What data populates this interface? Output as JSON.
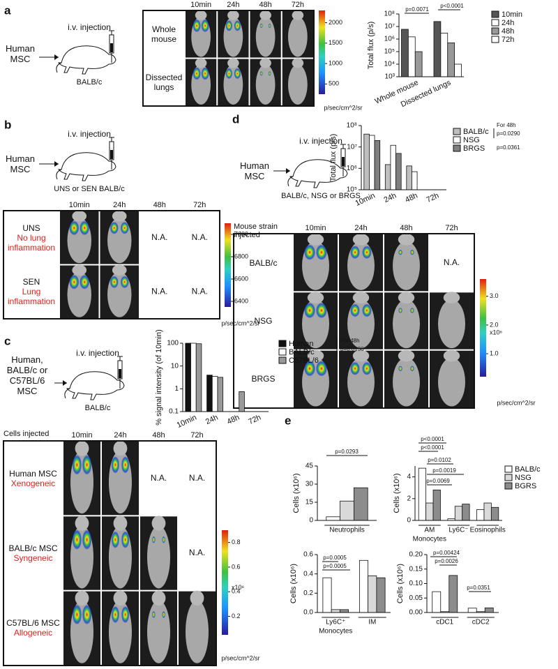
{
  "panel_labels": [
    "a",
    "b",
    "c",
    "d",
    "e"
  ],
  "a": {
    "source": "Human MSC",
    "route": "i.v. injection",
    "host": "BALB/c",
    "columns": [
      "10min",
      "24h",
      "48h",
      "72h"
    ],
    "rows": [
      {
        "label": "Whole mouse",
        "cells": [
          null,
          null,
          null,
          null
        ]
      },
      {
        "label": "Dissected lungs",
        "cells": [
          null,
          null,
          null,
          null
        ]
      }
    ],
    "colorbar": {
      "range": [
        250,
        2300
      ],
      "ticks": [
        500,
        1000,
        1500,
        2000
      ],
      "unit": "p/sec/cm^2/sr"
    }
  },
  "b": {
    "source": "Human MSC",
    "route": "i.v. injection",
    "host": "UNS or SEN BALB/c",
    "columns": [
      "10min",
      "24h",
      "48h",
      "72h"
    ],
    "rows": [
      {
        "label": "UNS",
        "note": "No lung inflammation",
        "cells": [
          null,
          null,
          "N.A.",
          "N.A."
        ]
      },
      {
        "label": "SEN",
        "note": "Lung inflammation",
        "cells": [
          null,
          null,
          "N.A.",
          "N.A."
        ]
      }
    ],
    "colorbar": {
      "range": [
        6350,
        7100
      ],
      "ticks": [
        6400,
        6600,
        6800,
        7000
      ],
      "unit": "p/sec/cm^2/sr"
    }
  },
  "c": {
    "source": "Human, BALB/c or C57BL/6 MSC",
    "route": "i.v. injection",
    "host": "BALB/c",
    "corner": "Cells injected",
    "columns": [
      "10min",
      "24h",
      "48h",
      "72h"
    ],
    "rows": [
      {
        "label": "Human MSC",
        "note": "Xenogeneic",
        "cells": [
          null,
          null,
          "N.A.",
          "N.A."
        ]
      },
      {
        "label": "BALB/c MSC",
        "note": "Syngeneic",
        "cells": [
          null,
          null,
          null,
          "N.A."
        ]
      },
      {
        "label": "C57BL/6 MSC",
        "note": "Allogeneic",
        "cells": [
          null,
          null,
          null,
          null
        ]
      }
    ],
    "colorbar": {
      "range": [
        0.05,
        0.9
      ],
      "ticks": [
        0.2,
        0.4,
        0.6,
        0.8
      ],
      "multiplier": "x10⁶",
      "unit": "p/sec/cm^2/sr"
    }
  },
  "d": {
    "source": "Human MSC",
    "route": "i.v. injection",
    "host": "BALB/c, NSG or BRGS",
    "corner": "Mouse strain injected",
    "columns": [
      "10min",
      "24h",
      "48h",
      "72h"
    ],
    "rows": [
      {
        "label": "BALB/c",
        "cells": [
          null,
          null,
          null,
          "N.A."
        ]
      },
      {
        "label": "NSG",
        "cells": [
          null,
          null,
          null,
          null
        ]
      },
      {
        "label": "BRGS",
        "cells": [
          null,
          null,
          null,
          null
        ]
      }
    ],
    "colorbar": {
      "range": [
        0.2,
        3.6
      ],
      "ticks": [
        {
          "value": 1,
          "label": "1.0"
        },
        {
          "value": 2,
          "label": "2.0"
        },
        {
          "value": 3,
          "label": "3.0"
        }
      ],
      "multiplier": "x10⁶",
      "unit": "p/sec/cm^2/sr"
    }
  },
  "chart_data": [
    {
      "type": "bar",
      "ylabel": "Total flux (p/s)",
      "log": true,
      "categories": [
        "Whole mouse",
        "Dissected lungs"
      ],
      "series": [
        {
          "name": "10min",
          "color": "#555555",
          "values": [
            6000000,
            25000000
          ]
        },
        {
          "name": "24h",
          "color": "#ffffff",
          "values": [
            1500000,
            3000000
          ]
        },
        {
          "name": "48h",
          "color": "#999999",
          "values": [
            100000,
            500000
          ]
        },
        {
          "name": "72h",
          "color": "#ffffff",
          "values": [
            null,
            10000
          ]
        }
      ],
      "ylim": [
        1000,
        100000000
      ],
      "yticks": [
        {
          "value": 1000,
          "label": "10³"
        },
        {
          "value": 10000,
          "label": "10⁴"
        },
        {
          "value": 100000,
          "label": "10⁵"
        },
        {
          "value": 1000000,
          "label": "10⁶"
        },
        {
          "value": 10000000,
          "label": "10⁷"
        },
        {
          "value": 100000000,
          "label": "10⁸"
        }
      ],
      "annotations": [
        "p=0.0071",
        "p<0.0001"
      ]
    },
    {
      "type": "bar",
      "ylabel": "% signal intensity (of 10min)",
      "log": true,
      "categories": [
        "10min",
        "24h",
        "48h",
        "72h"
      ],
      "series": [
        {
          "name": "Human",
          "color": "#111111",
          "values": [
            100,
            4,
            null,
            null
          ]
        },
        {
          "name": "BALB/c",
          "color": "#ffffff",
          "values": [
            100,
            3.5,
            null,
            null
          ]
        },
        {
          "name": "C57BL/6",
          "color": "#999999",
          "values": [
            95,
            3.2,
            0.75,
            null
          ]
        }
      ],
      "ylim": [
        0.1,
        100
      ],
      "yticks": [
        0.1,
        1,
        10,
        100
      ],
      "annotations": [
        "For 48h",
        "p=0.0136"
      ]
    },
    {
      "type": "bar",
      "ylabel": "Total flux (p/s)",
      "log": true,
      "categories": [
        "10min",
        "24h",
        "48h",
        "72h"
      ],
      "series": [
        {
          "name": "BALB/c",
          "color": "#bfbfbf",
          "values": [
            40000000,
            1500000,
            1300000,
            null
          ]
        },
        {
          "name": "NSG",
          "color": "#ffffff",
          "values": [
            35000000,
            12000000,
            700000,
            null
          ]
        },
        {
          "name": "BRGS",
          "color": "#7f7f7f",
          "values": [
            20000000,
            5000000,
            null,
            null
          ]
        }
      ],
      "ylim": [
        100000,
        100000000
      ],
      "yticks": [
        {
          "value": 100000,
          "label": "10⁵"
        },
        {
          "value": 1000000,
          "label": "10⁶"
        },
        {
          "value": 10000000,
          "label": "10⁷"
        },
        {
          "value": 100000000,
          "label": "10⁸"
        }
      ],
      "annotations": [
        "For 48h",
        "p=0.0290",
        "p=0.0361"
      ]
    },
    {
      "type": "bar",
      "ylabel": "Cells (x10⁶)",
      "categories": [
        "Neutrophils"
      ],
      "series": [
        {
          "name": "BALB/c",
          "color": "#ffffff",
          "values": [
            3
          ]
        },
        {
          "name": "NSG",
          "color": "#d9d9d9",
          "values": [
            16
          ]
        },
        {
          "name": "BGRS",
          "color": "#8c8c8c",
          "values": [
            27
          ]
        }
      ],
      "ylim": [
        0,
        45
      ],
      "yticks": [
        0,
        15,
        30,
        45
      ],
      "annotations": [
        "p=0.0293"
      ]
    },
    {
      "type": "bar",
      "ylabel": "Cells (x10⁶)",
      "categories": [
        "AM",
        "Ly6C⁻",
        "Eosinophils"
      ],
      "x_note": "Monocytes",
      "series": [
        {
          "name": "BALB/c",
          "color": "#ffffff",
          "values": [
            4.8,
            0.15,
            1.0
          ]
        },
        {
          "name": "NSG",
          "color": "#d9d9d9",
          "values": [
            1.6,
            1.3,
            1.6
          ]
        },
        {
          "name": "BGRS",
          "color": "#8c8c8c",
          "values": [
            2.8,
            1.5,
            1.2
          ]
        }
      ],
      "ylim": [
        0,
        5
      ],
      "yticks": [
        0,
        2,
        4
      ],
      "annotations": [
        "p<0.0001",
        "p<0.0001",
        "p=0.0102",
        "p=0.0019",
        "p=0.0069"
      ]
    },
    {
      "type": "bar",
      "ylabel": "Cells (x10⁶)",
      "categories": [
        "Ly6C⁺",
        "IM"
      ],
      "x_note": "Monocytes",
      "series": [
        {
          "name": "BALB/c",
          "color": "#ffffff",
          "values": [
            0.36,
            0.54
          ]
        },
        {
          "name": "NSG",
          "color": "#d9d9d9",
          "values": [
            0.03,
            0.38
          ]
        },
        {
          "name": "BGRS",
          "color": "#8c8c8c",
          "values": [
            0.03,
            0.36
          ]
        }
      ],
      "ylim": [
        0,
        0.6
      ],
      "yticks": [
        {
          "value": 0,
          "label": "0.0"
        },
        0.2,
        0.4,
        0.6
      ],
      "annotations": [
        "p=0.0005",
        "p=0.0005"
      ]
    },
    {
      "type": "bar",
      "ylabel": "Cells (x10⁶)",
      "categories": [
        "cDC1",
        "cDC2"
      ],
      "series": [
        {
          "name": "BALB/c",
          "color": "#ffffff",
          "values": [
            0.072,
            0.015
          ]
        },
        {
          "name": "NSG",
          "color": "#d9d9d9",
          "values": [
            0.003,
            0.003
          ]
        },
        {
          "name": "BGRS",
          "color": "#8c8c8c",
          "values": [
            0.128,
            0.016
          ]
        }
      ],
      "ylim": [
        0,
        0.2
      ],
      "yticks": [
        {
          "value": 0,
          "label": "0.00"
        },
        {
          "value": 0.05,
          "label": "0.05"
        },
        {
          "value": 0.1,
          "label": "0.10"
        },
        {
          "value": 0.15,
          "label": "0.15"
        },
        {
          "value": 0.2,
          "label": "0.20"
        }
      ],
      "annotations": [
        "p=0.00424",
        "p=0.0026",
        "p=0.0351"
      ]
    }
  ]
}
